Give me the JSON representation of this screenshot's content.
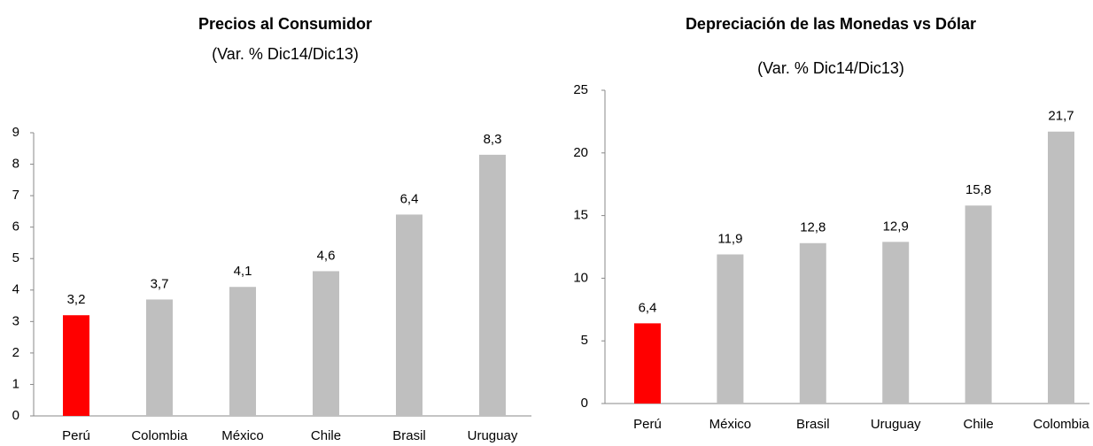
{
  "chart_data": [
    {
      "type": "bar",
      "title": "Precios al Consumidor",
      "subtitle": "(Var. % Dic14/Dic13)",
      "categories": [
        "Perú",
        "Colombia",
        "México",
        "Chile",
        "Brasil",
        "Uruguay"
      ],
      "values": [
        3.2,
        3.7,
        4.1,
        4.6,
        6.4,
        8.3
      ],
      "value_labels": [
        "3,2",
        "3,7",
        "4,1",
        "4,6",
        "6,4",
        "8,3"
      ],
      "colors": [
        "#ff0000",
        "#bfbfbf",
        "#bfbfbf",
        "#bfbfbf",
        "#bfbfbf",
        "#bfbfbf"
      ],
      "ylim": [
        0,
        9
      ],
      "yticks": [
        0,
        1,
        2,
        3,
        4,
        5,
        6,
        7,
        8,
        9
      ],
      "grid": false
    },
    {
      "type": "bar",
      "title": "Depreciación de las Monedas vs Dólar",
      "subtitle": "(Var. % Dic14/Dic13)",
      "categories": [
        "Perú",
        "México",
        "Brasil",
        "Uruguay",
        "Chile",
        "Colombia"
      ],
      "values": [
        6.4,
        11.9,
        12.8,
        12.9,
        15.8,
        21.7
      ],
      "value_labels": [
        "6,4",
        "11,9",
        "12,8",
        "12,9",
        "15,8",
        "21,7"
      ],
      "colors": [
        "#ff0000",
        "#bfbfbf",
        "#bfbfbf",
        "#bfbfbf",
        "#bfbfbf",
        "#bfbfbf"
      ],
      "ylim": [
        0,
        25
      ],
      "yticks": [
        0,
        5,
        10,
        15,
        20,
        25
      ],
      "grid": false
    }
  ]
}
